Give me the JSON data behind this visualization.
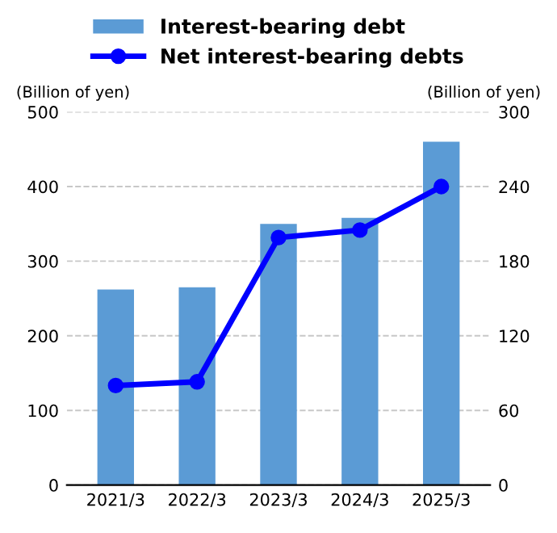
{
  "chart_data": {
    "type": "bar",
    "categories": [
      "2021/3",
      "2022/3",
      "2023/3",
      "2024/3",
      "2025/3"
    ],
    "series": [
      {
        "name": "Interest-bearing debt",
        "color": "#5b9bd5",
        "values": [
          262,
          265,
          350,
          358,
          460
        ]
      },
      {
        "name": "Net interest-bearing debts",
        "color": "#0000ff",
        "type": "line",
        "axis": "y2",
        "marker": "circle",
        "values": [
          80,
          83,
          199,
          205,
          240
        ]
      }
    ],
    "ylabel": "(Billion of yen)",
    "y2label": "(Billion of yen)",
    "ylim": [
      0,
      500
    ],
    "yticks": [
      0,
      100,
      200,
      300,
      400,
      500
    ],
    "y2lim": [
      0,
      300
    ],
    "y2ticks": [
      0,
      60,
      120,
      180,
      240,
      300
    ],
    "grid": "y",
    "legend": "top"
  }
}
